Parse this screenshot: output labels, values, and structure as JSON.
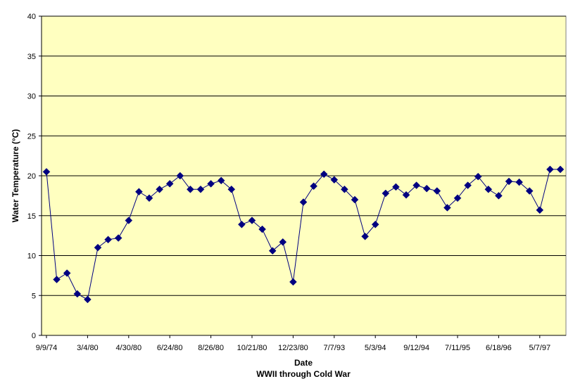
{
  "chart_data": {
    "type": "line",
    "xlabel": "Date",
    "xlabel2": "WWII through Cold War",
    "ylabel": "Water Temperature (°C)",
    "ylim": [
      0,
      40
    ],
    "yticks": [
      0,
      5,
      10,
      15,
      20,
      25,
      30,
      35,
      40
    ],
    "grid": true,
    "legend": "none",
    "colors": {
      "plot_bg": "#FFFFC0",
      "line": "#000080",
      "marker": "#000080",
      "grid": "#000000"
    },
    "x_tick_labels": [
      {
        "label": "9/9/74",
        "index": 0
      },
      {
        "label": "3/4/80",
        "index": 4
      },
      {
        "label": "4/30/80",
        "index": 8
      },
      {
        "label": "6/24/80",
        "index": 12
      },
      {
        "label": "8/26/80",
        "index": 16
      },
      {
        "label": "10/21/80",
        "index": 20
      },
      {
        "label": "12/23/80",
        "index": 24
      },
      {
        "label": "7/7/93",
        "index": 28
      },
      {
        "label": "5/3/94",
        "index": 32
      },
      {
        "label": "9/12/94",
        "index": 36
      },
      {
        "label": "7/11/95",
        "index": 40
      },
      {
        "label": "6/18/96",
        "index": 44
      },
      {
        "label": "5/7/97",
        "index": 48
      }
    ],
    "series": [
      {
        "values": [
          20.5,
          7.0,
          7.8,
          5.2,
          4.5,
          11.0,
          12.0,
          12.2,
          14.4,
          18.0,
          17.2,
          18.3,
          19.0,
          20.0,
          18.3,
          18.3,
          19.0,
          19.4,
          18.3,
          13.9,
          14.4,
          13.3,
          10.6,
          11.7,
          6.7,
          16.7,
          18.7,
          20.2,
          19.5,
          18.3,
          17.0,
          12.4,
          13.9,
          17.8,
          18.6,
          17.6,
          18.8,
          18.4,
          18.1,
          16.0,
          17.2,
          18.8,
          19.9,
          18.3,
          17.5,
          19.3,
          19.2,
          18.1,
          15.7,
          20.8,
          20.8
        ]
      }
    ]
  }
}
